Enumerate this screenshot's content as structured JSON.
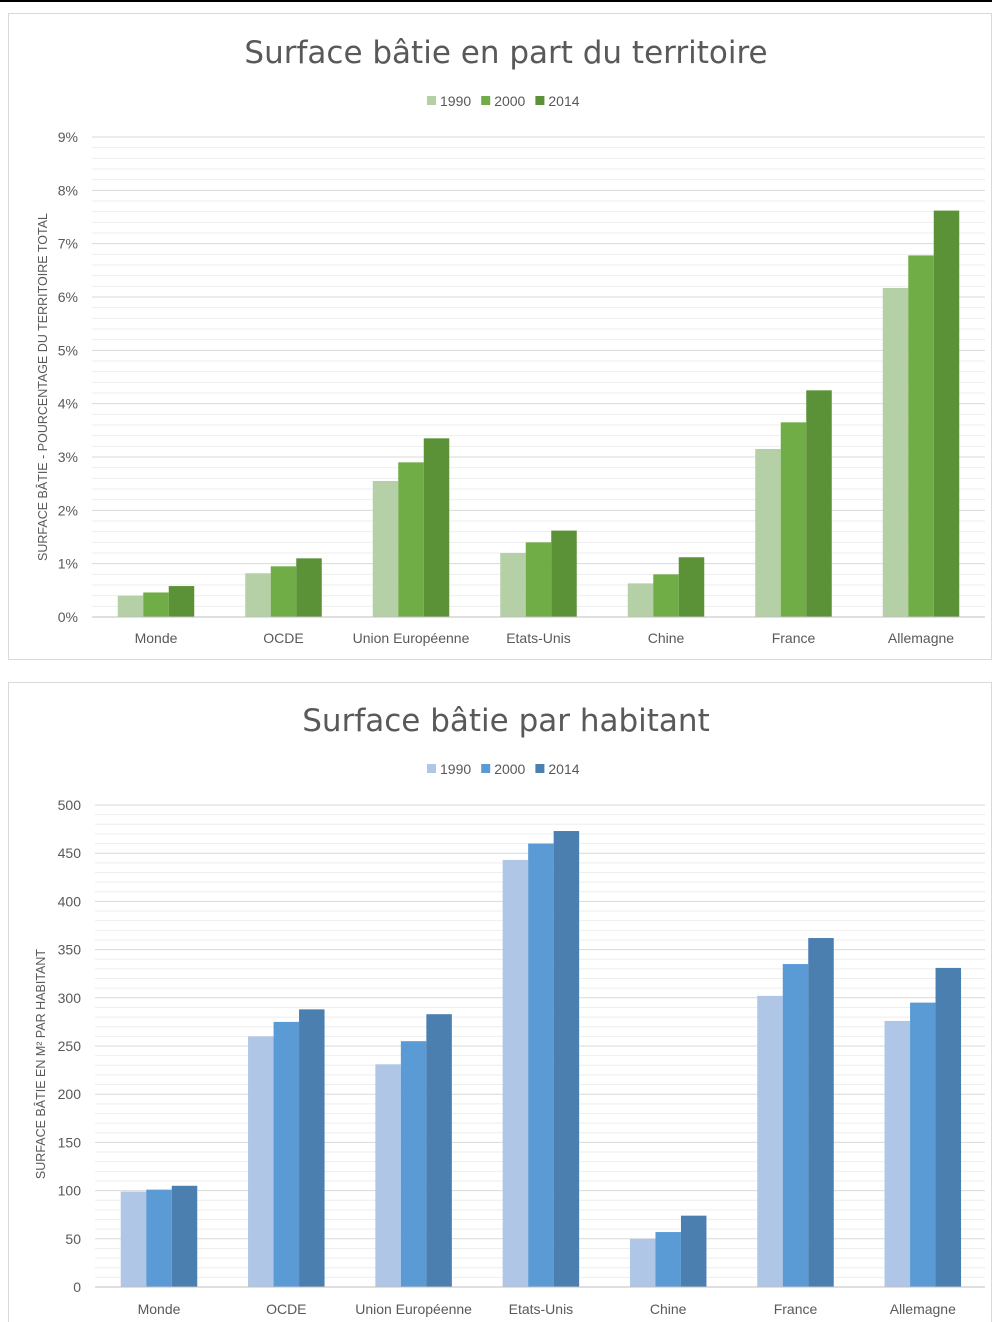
{
  "colors": {
    "chart1": [
      "#b5cfa7",
      "#70ad47",
      "#5b9137"
    ],
    "chart2": [
      "#afc6e6",
      "#5b9bd5",
      "#4a7fb0"
    ],
    "gridMajor": "#d9d9d9",
    "gridMinor": "#eeeeee",
    "axis": "#bfbfbf",
    "text": "#595959"
  },
  "chart_data": [
    {
      "type": "bar",
      "title": "Surface bâtie en part du territoire",
      "ylabel": "SURFACE BÂTIE - POURCENTAGE DU TERRITOIRE TOTAL",
      "xlabel": "",
      "categories": [
        "Monde",
        "OCDE",
        "Union Européenne",
        "Etats-Unis",
        "Chine",
        "France",
        "Allemagne"
      ],
      "series": [
        {
          "name": "1990",
          "values": [
            0.4,
            0.82,
            2.55,
            1.2,
            0.63,
            3.15,
            6.17
          ]
        },
        {
          "name": "2000",
          "values": [
            0.46,
            0.95,
            2.9,
            1.4,
            0.8,
            3.65,
            6.78
          ]
        },
        {
          "name": "2014",
          "values": [
            0.58,
            1.1,
            3.35,
            1.62,
            1.12,
            4.25,
            7.62
          ]
        }
      ],
      "ylim": [
        0,
        9
      ],
      "yticks": [
        0,
        1,
        2,
        3,
        4,
        5,
        6,
        7,
        8,
        9
      ],
      "yticklabels": [
        "0%",
        "1%",
        "2%",
        "3%",
        "4%",
        "5%",
        "6%",
        "7%",
        "8%",
        "9%"
      ],
      "grid": true,
      "legend": "top"
    },
    {
      "type": "bar",
      "title": "Surface bâtie par habitant",
      "ylabel": "SURFACE BÂTIE EN M² PAR HABITANT",
      "xlabel": "",
      "categories": [
        "Monde",
        "OCDE",
        "Union Européenne",
        "Etats-Unis",
        "Chine",
        "France",
        "Allemagne"
      ],
      "series": [
        {
          "name": "1990",
          "values": [
            99,
            260,
            231,
            443,
            50,
            302,
            276
          ]
        },
        {
          "name": "2000",
          "values": [
            101,
            275,
            255,
            460,
            57,
            335,
            295
          ]
        },
        {
          "name": "2014",
          "values": [
            105,
            288,
            283,
            473,
            74,
            362,
            331
          ]
        }
      ],
      "ylim": [
        0,
        500
      ],
      "yticks": [
        0,
        50,
        100,
        150,
        200,
        250,
        300,
        350,
        400,
        450,
        500
      ],
      "yticklabels": [
        "0",
        "50",
        "100",
        "150",
        "200",
        "250",
        "300",
        "350",
        "400",
        "450",
        "500"
      ],
      "grid": true,
      "legend": "top"
    }
  ]
}
